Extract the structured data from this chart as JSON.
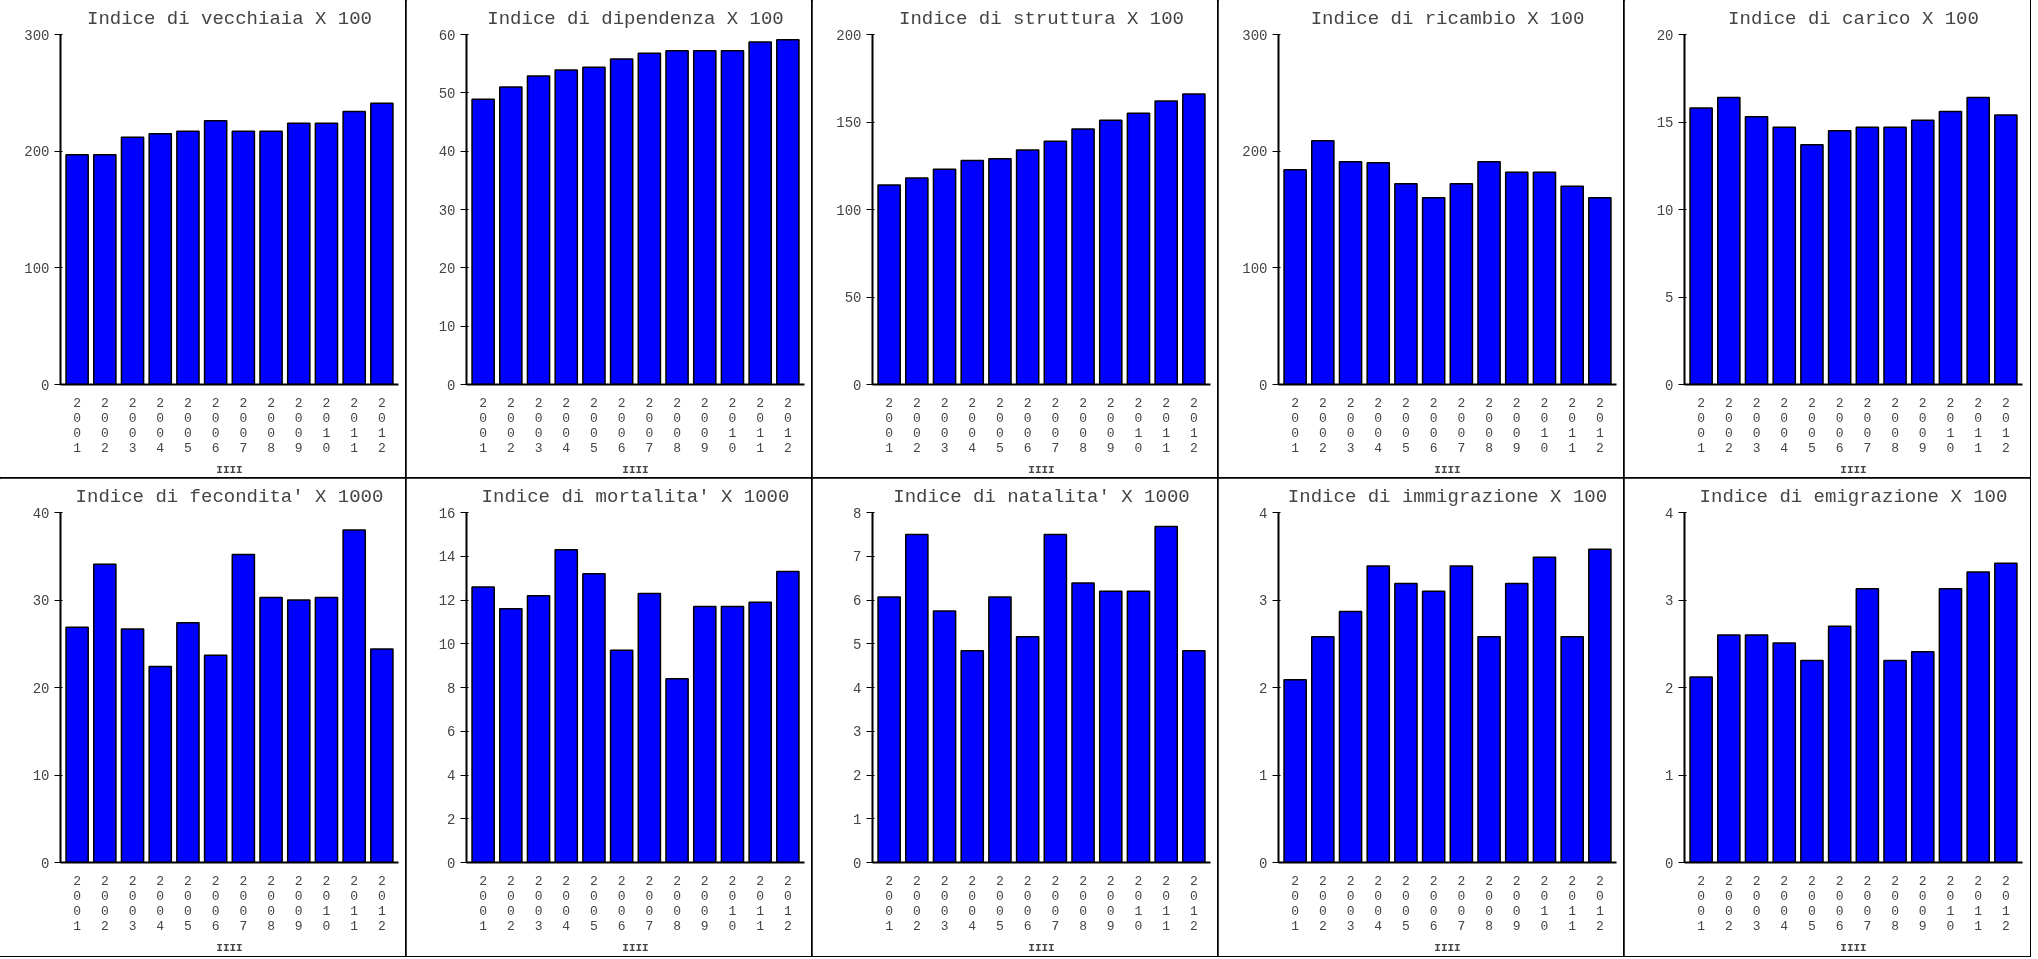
{
  "chart_data": [
    {
      "type": "bar",
      "title": "Indice di vecchiaia X 100",
      "xlabel": "IIII",
      "categories": [
        "2001",
        "2002",
        "2003",
        "2004",
        "2005",
        "2006",
        "2007",
        "2008",
        "2009",
        "2010",
        "2011",
        "2012"
      ],
      "values": [
        197,
        197,
        212,
        215,
        217,
        226,
        217,
        217,
        224,
        224,
        234,
        241
      ],
      "color": "#0000ff",
      "ylim": [
        0,
        300
      ],
      "yticks": [
        0,
        100,
        200,
        300
      ],
      "grid": false
    },
    {
      "type": "bar",
      "title": "Indice di dipendenza X 100",
      "xlabel": "IIII",
      "categories": [
        "2001",
        "2002",
        "2003",
        "2004",
        "2005",
        "2006",
        "2007",
        "2008",
        "2009",
        "2010",
        "2011",
        "2012"
      ],
      "values": [
        48.9,
        51,
        52.9,
        53.9,
        54.4,
        55.8,
        56.8,
        57.2,
        57.2,
        57.2,
        58.7,
        59.1
      ],
      "color": "#0000ff",
      "ylim": [
        0,
        60
      ],
      "yticks": [
        0,
        10,
        20,
        30,
        40,
        50,
        60
      ],
      "grid": false
    },
    {
      "type": "bar",
      "title": "Indice di struttura X 100",
      "xlabel": "IIII",
      "categories": [
        "2001",
        "2002",
        "2003",
        "2004",
        "2005",
        "2006",
        "2007",
        "2008",
        "2009",
        "2010",
        "2011",
        "2012"
      ],
      "values": [
        114,
        118,
        123,
        128,
        129,
        134,
        139,
        146,
        151,
        155,
        162,
        166
      ],
      "color": "#0000ff",
      "ylim": [
        0,
        200
      ],
      "yticks": [
        0,
        50,
        100,
        150,
        200
      ],
      "grid": false
    },
    {
      "type": "bar",
      "title": "Indice di ricambio X 100",
      "xlabel": "IIII",
      "categories": [
        "2001",
        "2002",
        "2003",
        "2004",
        "2005",
        "2006",
        "2007",
        "2008",
        "2009",
        "2010",
        "2011",
        "2012"
      ],
      "values": [
        184,
        209,
        191,
        190,
        172,
        160,
        172,
        191,
        182,
        182,
        170,
        160
      ],
      "color": "#0000ff",
      "ylim": [
        0,
        300
      ],
      "yticks": [
        0,
        100,
        200,
        300
      ],
      "grid": false
    },
    {
      "type": "bar",
      "title": "Indice di carico X 100",
      "xlabel": "IIII",
      "categories": [
        "2001",
        "2002",
        "2003",
        "2004",
        "2005",
        "2006",
        "2007",
        "2008",
        "2009",
        "2010",
        "2011",
        "2012"
      ],
      "values": [
        15.8,
        16.4,
        15.3,
        14.7,
        13.7,
        14.5,
        14.7,
        14.7,
        15.1,
        15.6,
        16.4,
        15.4
      ],
      "color": "#0000ff",
      "ylim": [
        0,
        20
      ],
      "yticks": [
        0,
        5,
        10,
        15,
        20
      ],
      "grid": false
    },
    {
      "type": "bar",
      "title": "Indice di fecondita' X 1000",
      "xlabel": "IIII",
      "categories": [
        "2001",
        "2002",
        "2003",
        "2004",
        "2005",
        "2006",
        "2007",
        "2008",
        "2009",
        "2010",
        "2011",
        "2012"
      ],
      "values": [
        26.9,
        34.1,
        26.7,
        22.4,
        27.4,
        23.7,
        35.2,
        30.3,
        30,
        30.3,
        38,
        24.4
      ],
      "color": "#0000ff",
      "ylim": [
        0,
        40
      ],
      "yticks": [
        0,
        10,
        20,
        30,
        40
      ],
      "grid": false
    },
    {
      "type": "bar",
      "title": "Indice di mortalita' X 1000",
      "xlabel": "IIII",
      "categories": [
        "2001",
        "2002",
        "2003",
        "2004",
        "2005",
        "2006",
        "2007",
        "2008",
        "2009",
        "2010",
        "2011",
        "2012"
      ],
      "values": [
        12.6,
        11.6,
        12.2,
        14.3,
        13.2,
        9.7,
        12.3,
        8.4,
        11.7,
        11.7,
        11.9,
        13.3
      ],
      "color": "#0000ff",
      "ylim": [
        0,
        16
      ],
      "yticks": [
        0,
        2,
        4,
        6,
        8,
        10,
        12,
        14,
        16
      ],
      "grid": false
    },
    {
      "type": "bar",
      "title": "Indice di natalita' X 1000",
      "xlabel": "IIII",
      "categories": [
        "2001",
        "2002",
        "2003",
        "2004",
        "2005",
        "2006",
        "2007",
        "2008",
        "2009",
        "2010",
        "2011",
        "2012"
      ],
      "values": [
        6.07,
        7.5,
        5.75,
        4.84,
        6.07,
        5.16,
        7.5,
        6.39,
        6.2,
        6.2,
        7.68,
        4.84
      ],
      "color": "#0000ff",
      "ylim": [
        0,
        8
      ],
      "yticks": [
        0,
        1,
        2,
        3,
        4,
        5,
        6,
        7,
        8
      ],
      "grid": false
    },
    {
      "type": "bar",
      "title": "Indice di immigrazione X 100",
      "xlabel": "IIII",
      "categories": [
        "2001",
        "2002",
        "2003",
        "2004",
        "2005",
        "2006",
        "2007",
        "2008",
        "2009",
        "2010",
        "2011",
        "2012"
      ],
      "values": [
        2.09,
        2.58,
        2.87,
        3.39,
        3.19,
        3.1,
        3.39,
        2.58,
        3.19,
        3.49,
        2.58,
        3.58
      ],
      "color": "#0000ff",
      "ylim": [
        0,
        4
      ],
      "yticks": [
        0,
        1,
        2,
        3,
        4
      ],
      "grid": false
    },
    {
      "type": "bar",
      "title": "Indice di emigrazione X 100",
      "xlabel": "IIII",
      "categories": [
        "2001",
        "2002",
        "2003",
        "2004",
        "2005",
        "2006",
        "2007",
        "2008",
        "2009",
        "2010",
        "2011",
        "2012"
      ],
      "values": [
        2.12,
        2.6,
        2.6,
        2.51,
        2.31,
        2.7,
        3.13,
        2.31,
        2.41,
        3.13,
        3.32,
        3.42
      ],
      "color": "#0000ff",
      "ylim": [
        0,
        4
      ],
      "yticks": [
        0,
        1,
        2,
        3,
        4
      ],
      "grid": false
    }
  ]
}
